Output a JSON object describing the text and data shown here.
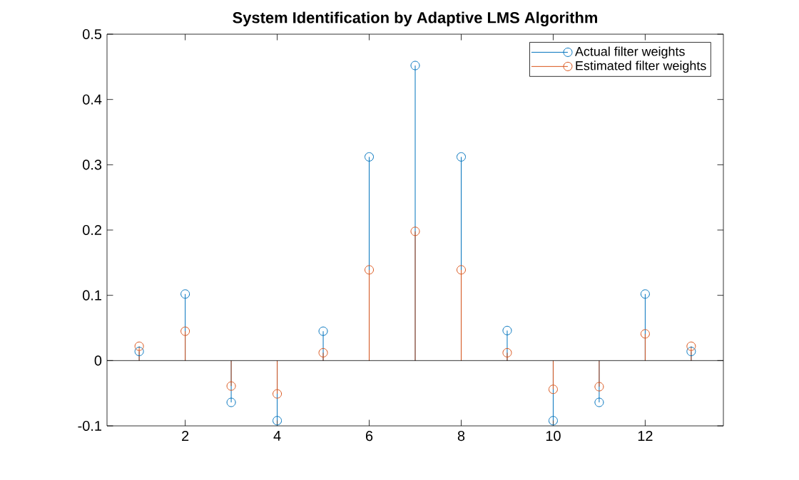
{
  "chart_data": {
    "type": "lollipop",
    "title": "System Identification by Adaptive LMS Algorithm",
    "x": [
      1,
      2,
      3,
      4,
      5,
      6,
      7,
      8,
      9,
      10,
      11,
      12,
      13
    ],
    "series": [
      {
        "name": "Actual filter weights",
        "color": "#0072bd",
        "values": [
          0.014,
          0.102,
          -0.064,
          -0.092,
          0.045,
          0.312,
          0.452,
          0.312,
          0.046,
          -0.092,
          -0.064,
          0.102,
          0.014
        ]
      },
      {
        "name": "Estimated filter weights",
        "color": "#d95319",
        "values": [
          0.022,
          0.045,
          -0.039,
          -0.051,
          0.012,
          0.139,
          0.198,
          0.139,
          0.012,
          -0.044,
          -0.04,
          0.041,
          0.022
        ]
      }
    ],
    "xlim": [
      0.3,
      13.7
    ],
    "xticks": [
      2,
      4,
      6,
      8,
      10,
      12
    ],
    "ylim": [
      -0.1,
      0.5
    ],
    "yticks": [
      -0.1,
      0,
      0.1,
      0.2,
      0.3,
      0.4,
      0.5
    ],
    "ref_lines": [
      {
        "axis": "y",
        "value": 0,
        "color": "#000000"
      }
    ],
    "legend": "top right",
    "marker": "circle"
  }
}
